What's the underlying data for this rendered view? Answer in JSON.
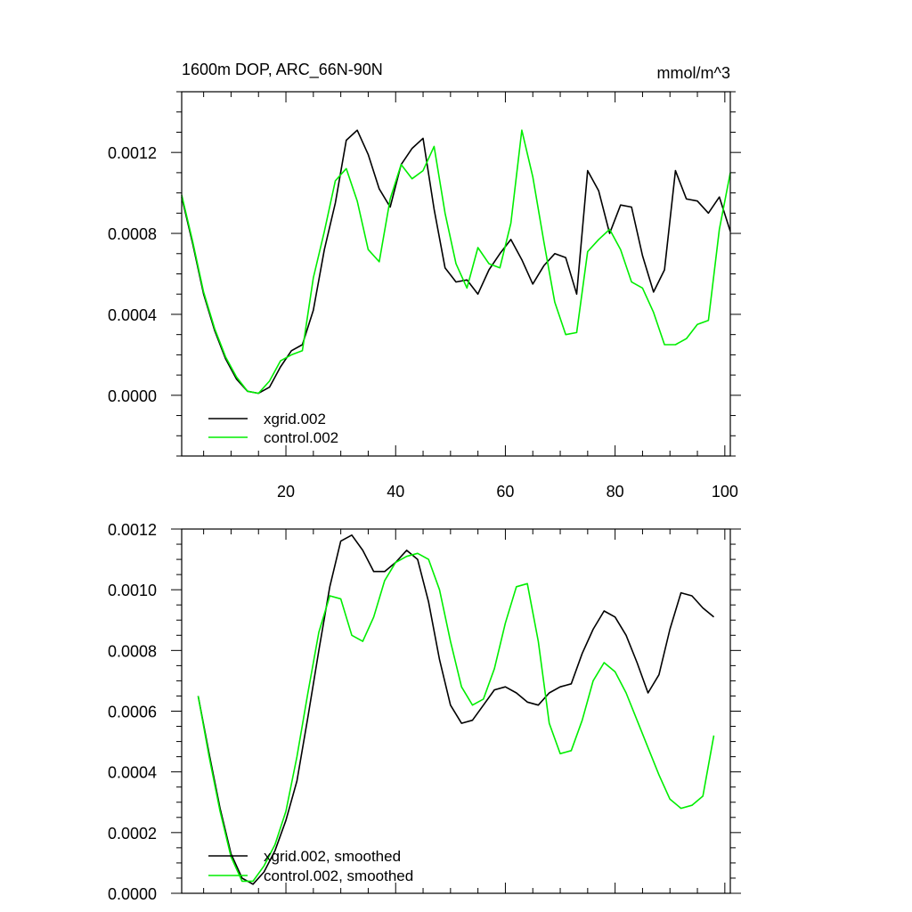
{
  "colors": {
    "series_black": "#000000",
    "series_green": "#00ee00",
    "axis": "#000000",
    "background": "#ffffff"
  },
  "chart_data": [
    {
      "type": "line",
      "title": "1600m DOP, ARC_66N-90N",
      "units": "mmol/m^3",
      "xlim": [
        1,
        101
      ],
      "ylim": [
        -0.0003,
        0.0015
      ],
      "xticks": [
        "20",
        "40",
        "60",
        "80",
        "100"
      ],
      "yticks": [
        "0.0000",
        "0.0004",
        "0.0008",
        "0.0012"
      ],
      "legend_position": "bottom-left",
      "series": [
        {
          "name": "xgrid.002",
          "color": "#000000",
          "x": [
            1,
            3,
            5,
            7,
            9,
            11,
            13,
            15,
            17,
            19,
            21,
            23,
            25,
            27,
            29,
            31,
            33,
            35,
            37,
            39,
            41,
            43,
            45,
            47,
            49,
            51,
            53,
            55,
            57,
            59,
            61,
            63,
            65,
            67,
            69,
            71,
            73,
            75,
            77,
            79,
            81,
            83,
            85,
            87,
            89,
            91,
            93,
            95,
            97,
            99,
            101
          ],
          "y": [
            0.00098,
            0.00075,
            0.0005,
            0.00032,
            0.00018,
            8e-05,
            2e-05,
            1e-05,
            4e-05,
            0.00014,
            0.00022,
            0.00025,
            0.00042,
            0.00072,
            0.00095,
            0.00126,
            0.00131,
            0.00119,
            0.00102,
            0.00093,
            0.00114,
            0.00122,
            0.00127,
            0.00092,
            0.00063,
            0.00056,
            0.00057,
            0.0005,
            0.00062,
            0.0007,
            0.00077,
            0.00067,
            0.00055,
            0.00064,
            0.0007,
            0.00068,
            0.0005,
            0.00111,
            0.00101,
            0.0008,
            0.00094,
            0.00093,
            0.00069,
            0.00051,
            0.00062,
            0.00111,
            0.00097,
            0.00096,
            0.0009,
            0.00098,
            0.00081
          ]
        },
        {
          "name": "control.002",
          "color": "#00ee00",
          "x": [
            1,
            3,
            5,
            7,
            9,
            11,
            13,
            15,
            17,
            19,
            21,
            23,
            25,
            27,
            29,
            31,
            33,
            35,
            37,
            39,
            41,
            43,
            45,
            47,
            49,
            51,
            53,
            55,
            57,
            59,
            61,
            63,
            65,
            67,
            69,
            71,
            73,
            75,
            77,
            79,
            81,
            83,
            85,
            87,
            89,
            91,
            93,
            95,
            97,
            99,
            101
          ],
          "y": [
            0.00099,
            0.00076,
            0.00051,
            0.00033,
            0.00019,
            9e-05,
            2e-05,
            1e-05,
            7e-05,
            0.00017,
            0.0002,
            0.00022,
            0.00058,
            0.00081,
            0.00106,
            0.00112,
            0.00096,
            0.00072,
            0.00066,
            0.00097,
            0.00114,
            0.00107,
            0.00111,
            0.00123,
            0.0009,
            0.00065,
            0.00053,
            0.00073,
            0.00065,
            0.00063,
            0.00085,
            0.00131,
            0.00108,
            0.00076,
            0.00046,
            0.0003,
            0.00031,
            0.00071,
            0.00077,
            0.00082,
            0.00072,
            0.00056,
            0.00053,
            0.00041,
            0.00025,
            0.00025,
            0.00028,
            0.00035,
            0.00037,
            0.00082,
            0.0011
          ]
        }
      ]
    },
    {
      "type": "line",
      "title": "",
      "xlim": [
        1,
        101
      ],
      "ylim": [
        0.0,
        0.0012
      ],
      "yticks": [
        "0.0000",
        "0.0002",
        "0.0004",
        "0.0006",
        "0.0008",
        "0.0010",
        "0.0012"
      ],
      "legend_position": "bottom-left",
      "series": [
        {
          "name": "xgrid.002, smoothed",
          "color": "#000000",
          "x": [
            4,
            6,
            8,
            10,
            12,
            14,
            16,
            18,
            20,
            22,
            24,
            26,
            28,
            30,
            32,
            34,
            36,
            38,
            40,
            42,
            44,
            46,
            48,
            50,
            52,
            54,
            56,
            58,
            60,
            62,
            64,
            66,
            68,
            70,
            72,
            74,
            76,
            78,
            80,
            82,
            84,
            86,
            88,
            90,
            92,
            94,
            96,
            98
          ],
          "y": [
            0.00065,
            0.00046,
            0.00028,
            0.00013,
            5e-05,
            3e-05,
            7e-05,
            0.00014,
            0.00024,
            0.00037,
            0.00058,
            0.0008,
            0.00101,
            0.00116,
            0.00118,
            0.00113,
            0.00106,
            0.00106,
            0.00109,
            0.00113,
            0.0011,
            0.00096,
            0.00077,
            0.00062,
            0.00056,
            0.00057,
            0.00062,
            0.00067,
            0.00068,
            0.00066,
            0.00063,
            0.00062,
            0.00066,
            0.00068,
            0.00069,
            0.00079,
            0.00087,
            0.00093,
            0.00091,
            0.00085,
            0.00076,
            0.00066,
            0.00072,
            0.00087,
            0.00099,
            0.00098,
            0.00094,
            0.00091
          ]
        },
        {
          "name": "control.002, smoothed",
          "color": "#00ee00",
          "x": [
            4,
            6,
            8,
            10,
            12,
            14,
            16,
            18,
            20,
            22,
            24,
            26,
            28,
            30,
            32,
            34,
            36,
            38,
            40,
            42,
            44,
            46,
            48,
            50,
            52,
            54,
            56,
            58,
            60,
            62,
            64,
            66,
            68,
            70,
            72,
            74,
            76,
            78,
            80,
            82,
            84,
            86,
            88,
            90,
            92,
            94,
            96,
            98
          ],
          "y": [
            0.00065,
            0.00045,
            0.00027,
            0.00012,
            4e-05,
            4e-05,
            9e-05,
            0.00016,
            0.00027,
            0.00045,
            0.00066,
            0.00086,
            0.00098,
            0.00097,
            0.00085,
            0.00083,
            0.00091,
            0.00103,
            0.00109,
            0.00111,
            0.00112,
            0.0011,
            0.001,
            0.00083,
            0.00068,
            0.00062,
            0.00064,
            0.00074,
            0.00089,
            0.00101,
            0.00102,
            0.00083,
            0.00056,
            0.00046,
            0.00047,
            0.00057,
            0.0007,
            0.00076,
            0.00073,
            0.00066,
            0.00057,
            0.00048,
            0.00039,
            0.00031,
            0.00028,
            0.00029,
            0.00032,
            0.00052
          ]
        }
      ]
    }
  ]
}
